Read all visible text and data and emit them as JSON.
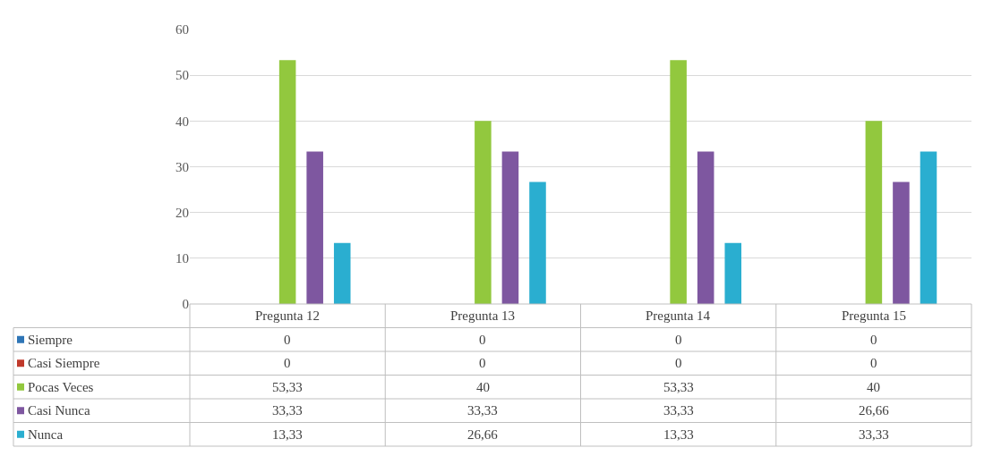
{
  "chart_data": {
    "type": "bar",
    "categories": [
      "Pregunta 12",
      "Pregunta 13",
      "Pregunta 14",
      "Pregunta 15"
    ],
    "ylim": [
      0,
      60
    ],
    "yticks": [
      0,
      10,
      20,
      30,
      40,
      50,
      60
    ],
    "grid": "y",
    "legend": "bottom left",
    "series": [
      {
        "name": "Siempre",
        "color": "#2e75b6",
        "values": [
          0,
          0,
          0,
          0
        ],
        "value_labels": [
          "0",
          "0",
          "0",
          "0"
        ]
      },
      {
        "name": "Casi Siempre",
        "color": "#c0392b",
        "values": [
          0,
          0,
          0,
          0
        ],
        "value_labels": [
          "0",
          "0",
          "0",
          "0"
        ]
      },
      {
        "name": "Pocas Veces",
        "color": "#92c83e",
        "values": [
          53.33,
          40,
          53.33,
          40
        ],
        "value_labels": [
          "53,33",
          "40",
          "53,33",
          "40"
        ]
      },
      {
        "name": "Casi Nunca",
        "color": "#7e57a0",
        "values": [
          33.33,
          33.33,
          33.33,
          26.66
        ],
        "value_labels": [
          "33,33",
          "33,33",
          "33,33",
          "26,66"
        ]
      },
      {
        "name": "Nunca",
        "color": "#2aaed0",
        "values": [
          13.33,
          26.66,
          13.33,
          33.33
        ],
        "value_labels": [
          "13,33",
          "26,66",
          "13,33",
          "33,33"
        ]
      }
    ]
  }
}
